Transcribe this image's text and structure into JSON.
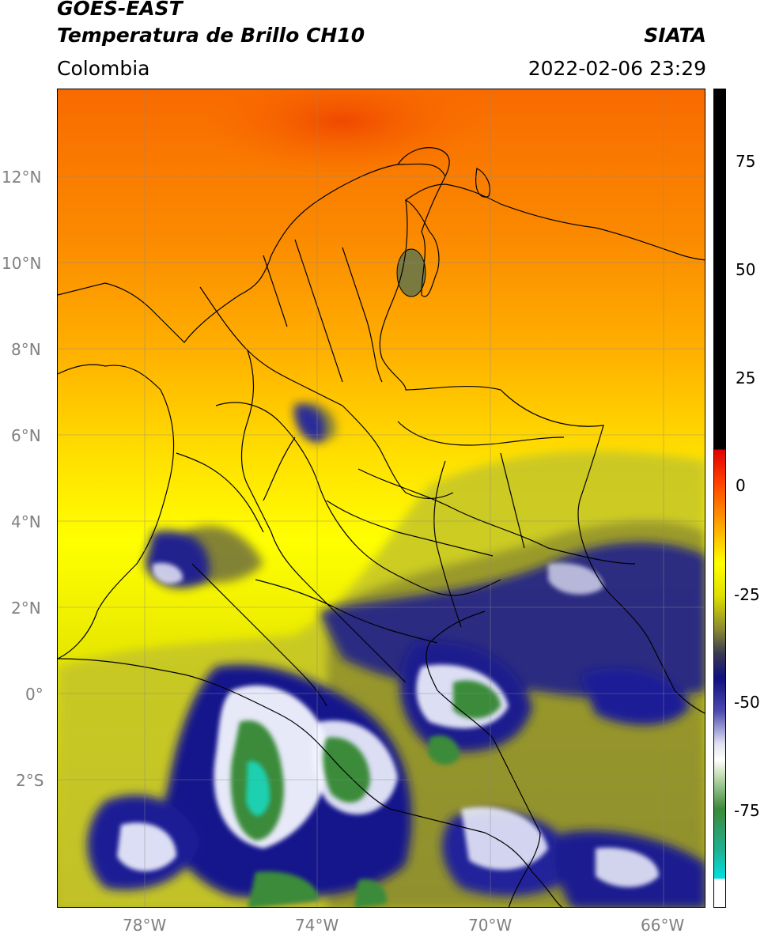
{
  "header": {
    "satellite": "GOES-EAST",
    "product": "Temperatura de Brillo CH10",
    "institution": "SIATA",
    "region": "Colombia",
    "datetime": "2022-02-06 23:29"
  },
  "map": {
    "lat_ticks": [
      "12°N",
      "10°N",
      "8°N",
      "6°N",
      "4°N",
      "2°N",
      "0°",
      "2°S"
    ],
    "lon_ticks": [
      "78°W",
      "74°W",
      "70°W",
      "66°W"
    ],
    "colors": {
      "warm_top": "#f86a00",
      "orange": "#ffa000",
      "yellow": "#ffff00",
      "olive": "#b8b820",
      "dark_olive": "#555530",
      "navy": "#13138a",
      "white": "#ffffff",
      "green": "#3a8a3a",
      "teal": "#1fd0b0"
    }
  },
  "colorbar": {
    "ticks": [
      "75",
      "50",
      "25",
      "0",
      "-25",
      "-50",
      "-75"
    ]
  }
}
